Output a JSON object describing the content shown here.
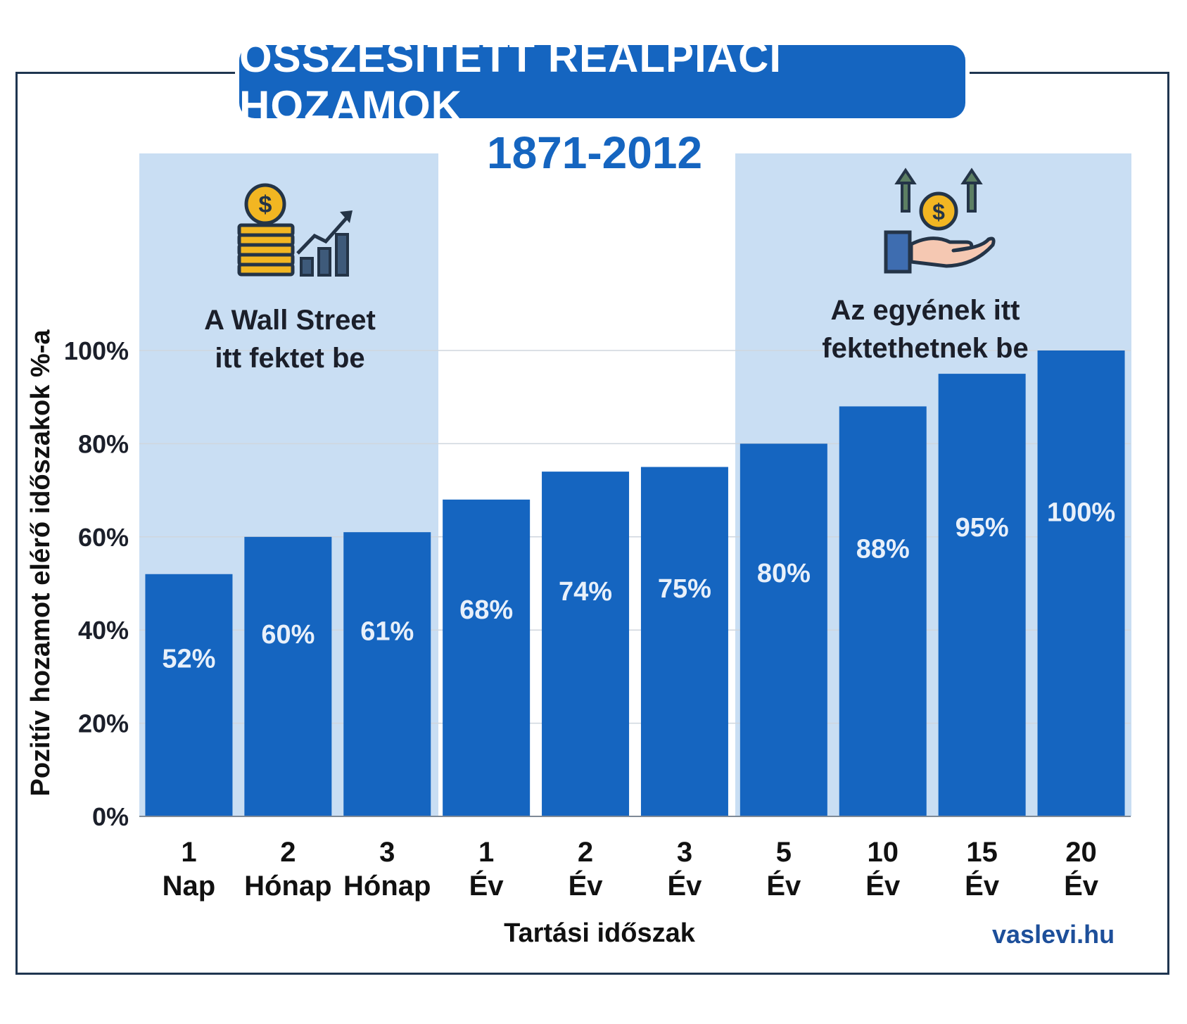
{
  "chart_data": {
    "type": "bar",
    "title": "ÖSSZESÍTETT REÁLPIACI HOZAMOK",
    "subtitle": "1871-2012",
    "xlabel": "Tartási időszak",
    "ylabel": "Pozitív hozamot elérő időszakok %-a",
    "ylim": [
      0,
      100
    ],
    "yticks": [
      "0%",
      "20%",
      "40%",
      "60%",
      "80%",
      "100%"
    ],
    "ytick_values": [
      0,
      20,
      40,
      60,
      80,
      100
    ],
    "categories": [
      {
        "num": "1",
        "unit": "Nap"
      },
      {
        "num": "2",
        "unit": "Hónap"
      },
      {
        "num": "3",
        "unit": "Hónap"
      },
      {
        "num": "1",
        "unit": "Év"
      },
      {
        "num": "2",
        "unit": "Év"
      },
      {
        "num": "3",
        "unit": "Év"
      },
      {
        "num": "5",
        "unit": "Év"
      },
      {
        "num": "10",
        "unit": "Év"
      },
      {
        "num": "15",
        "unit": "Év"
      },
      {
        "num": "20",
        "unit": "Év"
      }
    ],
    "values": [
      52,
      60,
      61,
      68,
      74,
      75,
      80,
      88,
      95,
      100
    ],
    "labels": [
      "52%",
      "60%",
      "61%",
      "68%",
      "74%",
      "75%",
      "80%",
      "88%",
      "95%",
      "100%"
    ],
    "annotations": [
      {
        "line1": "A Wall Street",
        "line2": "itt fektet be"
      },
      {
        "line1": "Az egyének itt",
        "line2": "fektethetnek be"
      }
    ]
  },
  "credit": "vaslevi.hu",
  "colors": {
    "bar": "#1565c0",
    "shade": "#c9def3",
    "title_bg": "#1565c0",
    "accent_text": "#1565c0",
    "gold": "#f2b622",
    "dark": "#243447"
  },
  "icons": [
    "coins-growth-chart-icon",
    "hand-coin-arrows-icon"
  ]
}
